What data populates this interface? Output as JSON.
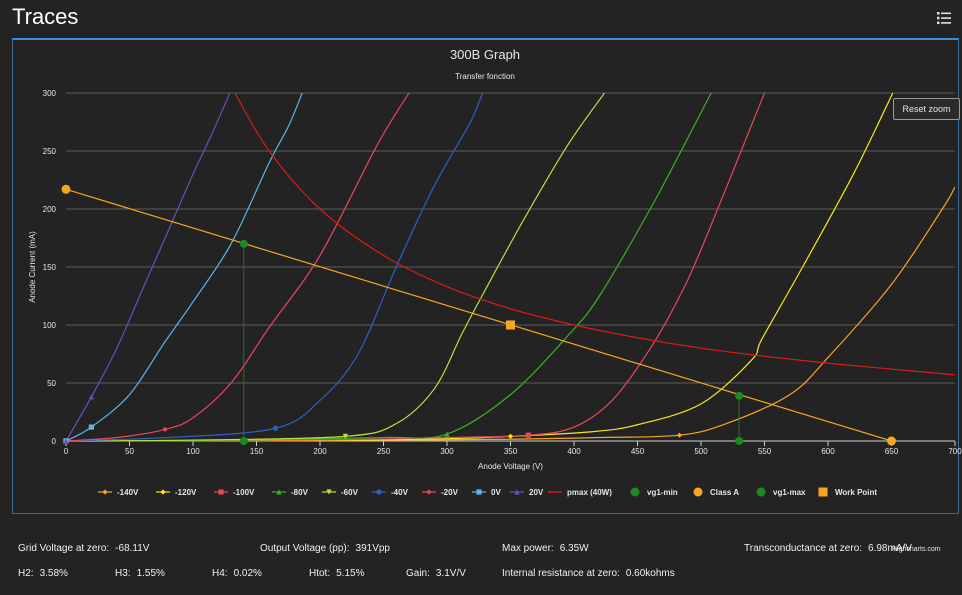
{
  "app": {
    "title": "Traces"
  },
  "controls": {
    "reset_zoom": "Reset zoom",
    "credit": "Highcharts.com"
  },
  "chart_data": {
    "type": "line",
    "title": "300B Graph",
    "subtitle": "Transfer fonction",
    "xlabel": "Anode Voltage (V)",
    "ylabel": "Anode Current (mA)",
    "xlim": [
      0,
      700
    ],
    "ylim": [
      0,
      300
    ],
    "xticks": [
      0,
      50,
      100,
      150,
      200,
      250,
      300,
      350,
      400,
      450,
      500,
      550,
      600,
      650,
      700
    ],
    "yticks": [
      0,
      50,
      100,
      150,
      200,
      250,
      300
    ],
    "grid": true,
    "legend_position": "bottom",
    "series": [
      {
        "name": "-140V",
        "color": "#f5a623",
        "marker": "diamond",
        "points": [
          [
            0,
            0
          ],
          [
            150,
            0.3
          ],
          [
            250,
            0.8
          ],
          [
            350,
            1.5
          ],
          [
            420,
            3
          ],
          [
            483,
            5
          ],
          [
            520,
            15
          ],
          [
            570,
            40
          ],
          [
            600,
            72
          ],
          [
            650,
            135
          ],
          [
            690,
            200
          ],
          [
            700,
            219
          ]
        ]
      },
      {
        "name": "-120V",
        "color": "#f8e71c",
        "marker": "diamond",
        "points": [
          [
            0,
            0
          ],
          [
            200,
            0.5
          ],
          [
            300,
            2
          ],
          [
            350,
            4
          ],
          [
            414,
            8
          ],
          [
            450,
            14
          ],
          [
            500,
            32
          ],
          [
            540,
            70
          ],
          [
            548,
            88
          ],
          [
            580,
            150
          ],
          [
            620,
            230
          ],
          [
            651,
            300
          ]
        ]
      },
      {
        "name": "-100V",
        "color": "#e8485a",
        "marker": "square",
        "points": [
          [
            0,
            0
          ],
          [
            200,
            1
          ],
          [
            300,
            3
          ],
          [
            364,
            5
          ],
          [
            400,
            12
          ],
          [
            430,
            35
          ],
          [
            459,
            78
          ],
          [
            480,
            118
          ],
          [
            500,
            165
          ],
          [
            550,
            300
          ]
        ]
      },
      {
        "name": "-80V",
        "color": "#3fae2a",
        "marker": "triangle",
        "points": [
          [
            0,
            0
          ],
          [
            150,
            1
          ],
          [
            250,
            3
          ],
          [
            300,
            6
          ],
          [
            350,
            40
          ],
          [
            397,
            93
          ],
          [
            420,
            125
          ],
          [
            460,
            200
          ],
          [
            490,
            262
          ],
          [
            508,
            300
          ]
        ]
      },
      {
        "name": "-60V",
        "color": "#b6e340",
        "marker": "triangle-down",
        "points": [
          [
            0,
            0
          ],
          [
            100,
            0.8
          ],
          [
            220,
            4
          ],
          [
            260,
            15
          ],
          [
            290,
            45
          ],
          [
            312,
            93
          ],
          [
            330,
            130
          ],
          [
            360,
            190
          ],
          [
            395,
            255
          ],
          [
            424,
            300
          ]
        ]
      },
      {
        "name": "-40V",
        "color": "#2f5fc4",
        "marker": "circle",
        "points": [
          [
            0,
            0
          ],
          [
            80,
            3
          ],
          [
            165,
            11
          ],
          [
            200,
            35
          ],
          [
            230,
            75
          ],
          [
            260,
            150
          ],
          [
            290,
            220
          ],
          [
            318,
            274
          ],
          [
            328,
            300
          ]
        ]
      },
      {
        "name": "-20V",
        "color": "#e8485a",
        "marker": "diamond",
        "points": [
          [
            0,
            0
          ],
          [
            40,
            3
          ],
          [
            78,
            10
          ],
          [
            100,
            20
          ],
          [
            130,
            50
          ],
          [
            160,
            98
          ],
          [
            200,
            160
          ],
          [
            245,
            255
          ],
          [
            270,
            300
          ]
        ]
      },
      {
        "name": "0V",
        "color": "#5fb3e8",
        "marker": "square",
        "points": [
          [
            0,
            0
          ],
          [
            20,
            12
          ],
          [
            50,
            40
          ],
          [
            77,
            84
          ],
          [
            100,
            120
          ],
          [
            130,
            170
          ],
          [
            160,
            240
          ],
          [
            175,
            271
          ],
          [
            186,
            300
          ]
        ]
      },
      {
        "name": "20V",
        "color": "#6a51b8",
        "marker": "triangle",
        "points": [
          [
            0,
            0
          ],
          [
            20,
            38
          ],
          [
            40,
            80
          ],
          [
            60,
            130
          ],
          [
            80,
            180
          ],
          [
            100,
            230
          ],
          [
            115,
            265
          ],
          [
            129,
            300
          ]
        ]
      },
      {
        "name": "pmax (40W)",
        "color": "#d81a1a",
        "marker": "none",
        "points": [
          [
            133,
            300
          ],
          [
            160,
            250
          ],
          [
            200,
            200
          ],
          [
            250,
            160
          ],
          [
            300,
            133
          ],
          [
            350,
            114
          ],
          [
            400,
            100
          ],
          [
            450,
            89
          ],
          [
            500,
            80
          ],
          [
            550,
            73
          ],
          [
            600,
            67
          ],
          [
            650,
            62
          ],
          [
            700,
            57
          ]
        ]
      },
      {
        "name": "vg1-min",
        "color": "#1e8a1e",
        "marker": "circle",
        "points": [
          [
            140,
            0
          ],
          [
            140,
            170
          ]
        ]
      },
      {
        "name": "Class A",
        "color": "#f5a623",
        "marker": "circle",
        "points": [
          [
            0,
            217
          ],
          [
            650,
            0
          ]
        ]
      },
      {
        "name": "vg1-max",
        "color": "#1e8a1e",
        "marker": "circle",
        "points": [
          [
            530,
            0
          ],
          [
            530,
            39
          ]
        ]
      },
      {
        "name": "Work Point",
        "color": "#f5a623",
        "marker": "square",
        "points": [
          [
            350,
            100
          ]
        ]
      }
    ]
  },
  "stats": {
    "grid_voltage": {
      "label": "Grid Voltage at zero:",
      "value": "-68.11V"
    },
    "output_voltage": {
      "label": "Output Voltage (pp):",
      "value": "391Vpp"
    },
    "max_power": {
      "label": "Max power:",
      "value": "6.35W"
    },
    "transconductance": {
      "label": "Transconductance at zero:",
      "value": "6.98mA/V"
    },
    "h2": {
      "label": "H2:",
      "value": "3.58%"
    },
    "h3": {
      "label": "H3:",
      "value": "1.55%"
    },
    "h4": {
      "label": "H4:",
      "value": "0.02%"
    },
    "htot": {
      "label": "Htot:",
      "value": "5.15%"
    },
    "gain": {
      "label": "Gain:",
      "value": "3.1V/V"
    },
    "internal_resistance": {
      "label": "Internal resistance at zero:",
      "value": "0.60kohms"
    }
  }
}
